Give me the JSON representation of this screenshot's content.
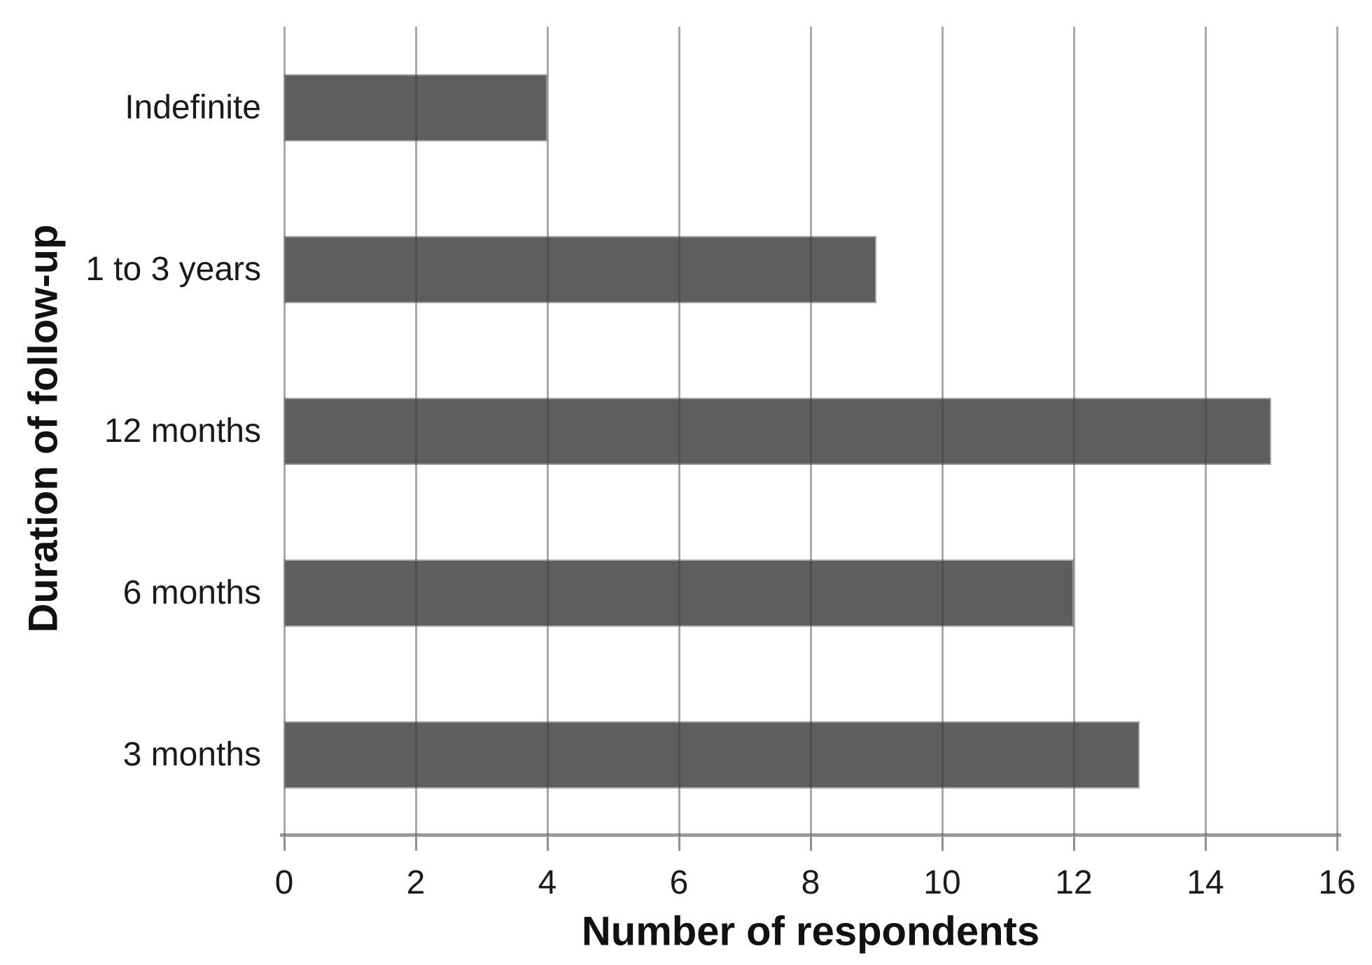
{
  "chart_data": {
    "type": "bar",
    "orientation": "horizontal",
    "categories": [
      "Indefinite",
      "1 to 3 years",
      "12 months",
      "6 months",
      "3 months"
    ],
    "values": [
      4,
      9,
      15,
      12,
      13
    ],
    "title": "",
    "xlabel": "Number of respondents",
    "ylabel": "Duration of follow-up",
    "x_ticks": [
      0,
      2,
      4,
      6,
      8,
      10,
      12,
      14,
      16
    ],
    "xlim": [
      0,
      16
    ],
    "grid": "vertical-gridlines-on",
    "legend": "none",
    "bar_color": "#5e5e5e",
    "bar_border_color": "#a3a3a3",
    "gridline_color": "rgba(64,64,64,0.45)",
    "axis_line_color": "#9a9a9a",
    "text_color": "#1a1a1a",
    "background_color": "#ffffff"
  }
}
